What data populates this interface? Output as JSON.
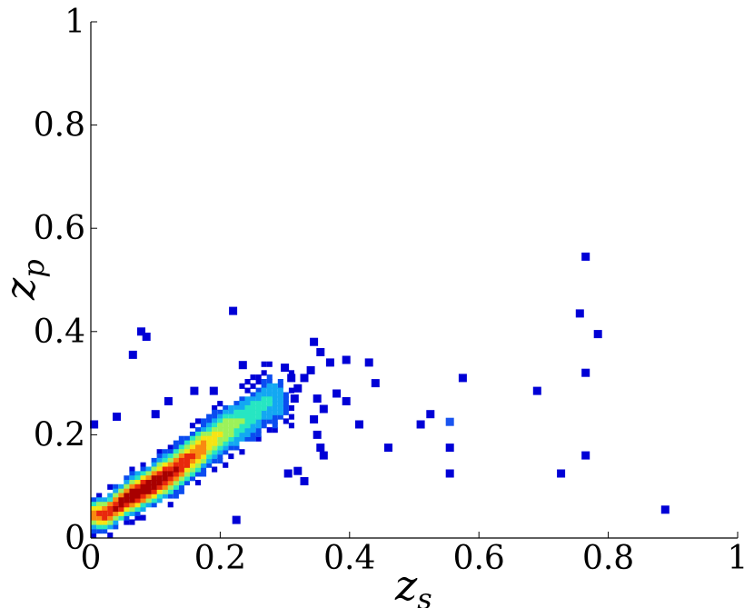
{
  "chart_data": {
    "type": "heatmap",
    "title": "",
    "xlabel": {
      "main": "z",
      "sub": "s"
    },
    "ylabel": {
      "main": "z",
      "sub": "p"
    },
    "xlim": [
      0,
      1
    ],
    "ylim": [
      0,
      1
    ],
    "x_ticks": [
      "0",
      "0.2",
      "0.4",
      "0.6",
      "0.8",
      "1"
    ],
    "y_ticks": [
      "0",
      "0.2",
      "0.4",
      "0.6",
      "0.8",
      "1"
    ],
    "grid": false,
    "colormap": [
      "#0000d6",
      "#0a4cf0",
      "#13a8f2",
      "#27e6c2",
      "#9cf25a",
      "#f5e414",
      "#f98a10",
      "#e8280c",
      "#a80000"
    ],
    "bin_width": 0.0085,
    "density_core": {
      "description_free": true,
      "ridge": [
        [
          0.02,
          0.04
        ],
        [
          0.05,
          0.07
        ],
        [
          0.08,
          0.09
        ],
        [
          0.12,
          0.12
        ],
        [
          0.16,
          0.16
        ],
        [
          0.2,
          0.2
        ],
        [
          0.24,
          0.23
        ],
        [
          0.27,
          0.26
        ]
      ],
      "peak": [
        0.08,
        0.09
      ]
    },
    "outliers": [
      [
        0.078,
        0.4
      ],
      [
        0.086,
        0.39
      ],
      [
        0.065,
        0.355
      ],
      [
        0.22,
        0.44
      ],
      [
        0.235,
        0.335
      ],
      [
        0.345,
        0.38
      ],
      [
        0.355,
        0.36
      ],
      [
        0.37,
        0.34
      ],
      [
        0.395,
        0.345
      ],
      [
        0.43,
        0.34
      ],
      [
        0.44,
        0.3
      ],
      [
        0.38,
        0.28
      ],
      [
        0.395,
        0.265
      ],
      [
        0.415,
        0.22
      ],
      [
        0.46,
        0.175
      ],
      [
        0.51,
        0.22
      ],
      [
        0.525,
        0.24
      ],
      [
        0.555,
        0.225
      ],
      [
        0.555,
        0.175
      ],
      [
        0.555,
        0.125
      ],
      [
        0.575,
        0.31
      ],
      [
        0.69,
        0.285
      ],
      [
        0.727,
        0.125
      ],
      [
        0.756,
        0.435
      ],
      [
        0.765,
        0.545
      ],
      [
        0.765,
        0.32
      ],
      [
        0.765,
        0.16
      ],
      [
        0.784,
        0.395
      ],
      [
        0.888,
        0.055
      ],
      [
        0.345,
        0.23
      ],
      [
        0.35,
        0.2
      ],
      [
        0.355,
        0.175
      ],
      [
        0.36,
        0.16
      ],
      [
        0.32,
        0.13
      ],
      [
        0.33,
        0.11
      ],
      [
        0.305,
        0.125
      ],
      [
        0.225,
        0.035
      ],
      [
        0.04,
        0.235
      ],
      [
        0.005,
        0.22
      ],
      [
        0.1,
        0.24
      ],
      [
        0.12,
        0.265
      ],
      [
        0.16,
        0.285
      ],
      [
        0.19,
        0.285
      ],
      [
        0.33,
        0.31
      ],
      [
        0.34,
        0.325
      ],
      [
        0.35,
        0.27
      ],
      [
        0.36,
        0.25
      ],
      [
        0.3,
        0.33
      ],
      [
        0.31,
        0.31
      ],
      [
        0.315,
        0.27
      ],
      [
        0.32,
        0.29
      ]
    ]
  }
}
